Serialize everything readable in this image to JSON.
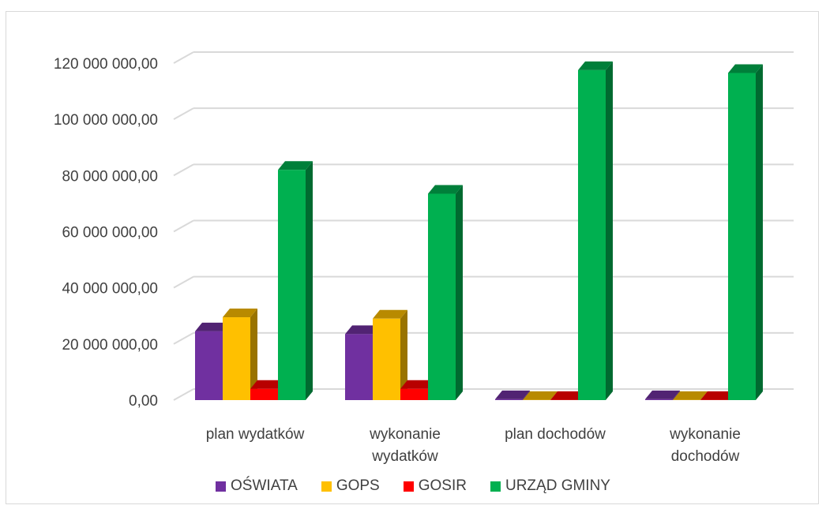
{
  "chart_data": {
    "type": "bar",
    "subtype": "3d-clustered-column",
    "categories": [
      [
        "plan wydatków"
      ],
      [
        "wykonanie",
        "wydatków"
      ],
      [
        "plan dochodów"
      ],
      [
        "wykonanie",
        "dochodów"
      ]
    ],
    "series": [
      {
        "name": "OŚWIATA",
        "color": "#7030a0",
        "values": [
          24500000,
          23500000,
          300000,
          300000
        ]
      },
      {
        "name": "GOPS",
        "color": "#ffc000",
        "values": [
          29500000,
          29000000,
          50000,
          50000
        ]
      },
      {
        "name": "GOSIR",
        "color": "#ff0000",
        "values": [
          4000000,
          4000000,
          50000,
          50000
        ]
      },
      {
        "name": "URZĄD GMINY",
        "color": "#00b050",
        "values": [
          82000000,
          73500000,
          117500000,
          116500000
        ]
      }
    ],
    "y_ticks": [
      "0,00",
      "20 000 000,00",
      "40 000 000,00",
      "60 000 000,00",
      "80 000 000,00",
      "100 000 000,00",
      "120 000 000,00"
    ],
    "ylim": [
      0,
      120000000
    ],
    "grid": true,
    "legend_position": "bottom"
  }
}
